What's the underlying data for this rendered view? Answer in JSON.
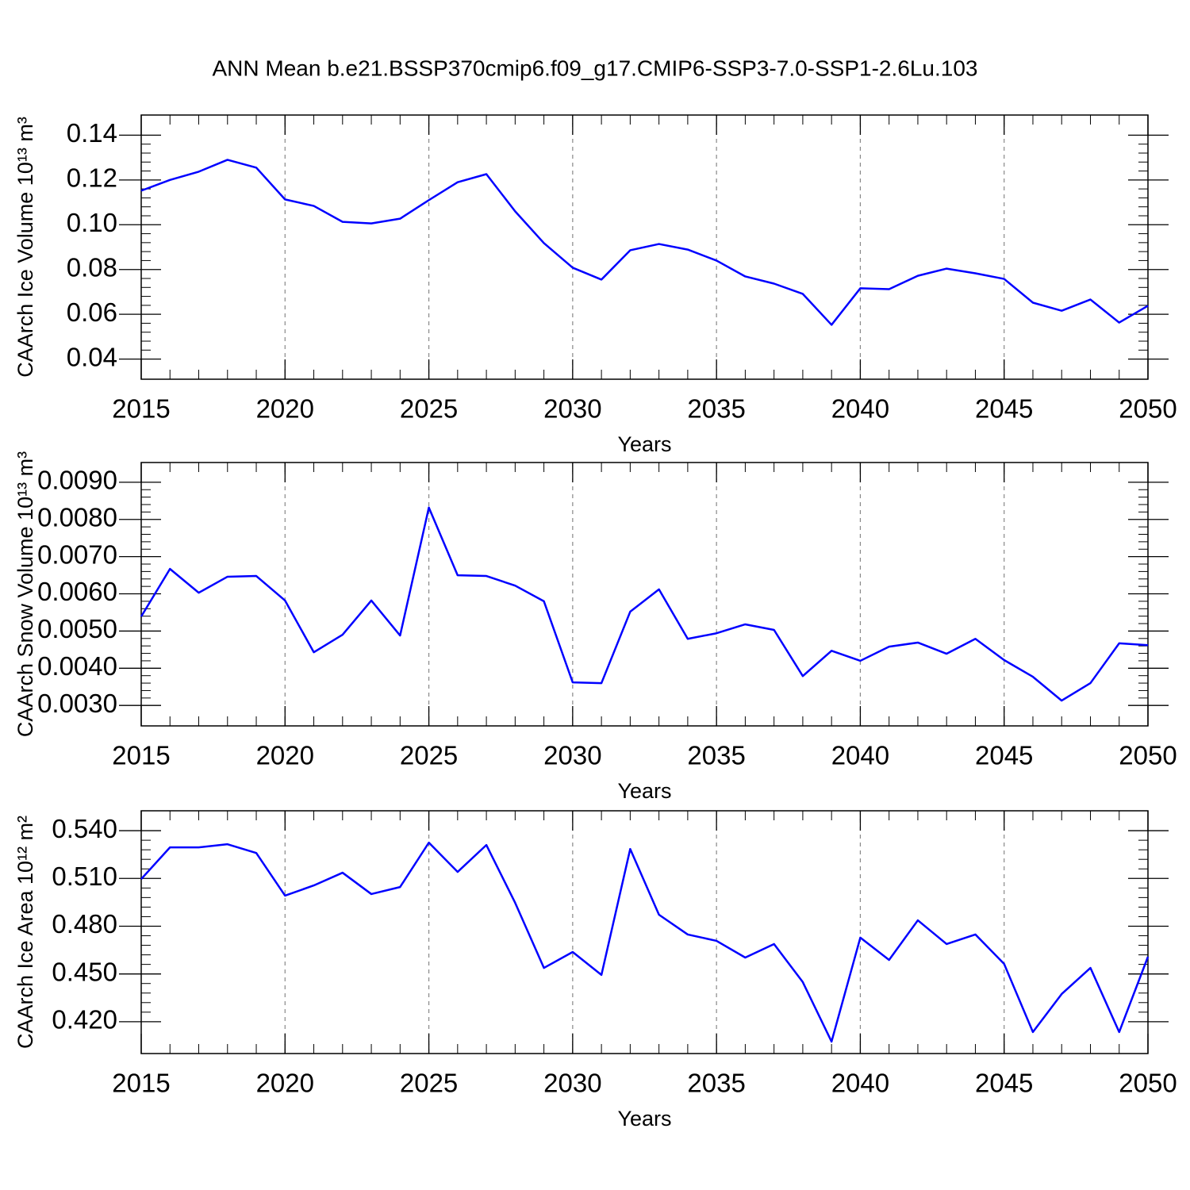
{
  "title": "ANN Mean b.e21.BSSP370cmip6.f09_g17.CMIP6-SSP3-7.0-SSP1-2.6Lu.103",
  "chart_data": [
    {
      "type": "line",
      "ylabel": "CAArch Ice Volume 10¹³ m³",
      "xlabel": "Years",
      "color": "#0000ff",
      "x": [
        2015,
        2016,
        2017,
        2018,
        2019,
        2020,
        2021,
        2022,
        2023,
        2024,
        2025,
        2026,
        2027,
        2028,
        2029,
        2030,
        2031,
        2032,
        2033,
        2034,
        2035,
        2036,
        2037,
        2038,
        2039,
        2040,
        2041,
        2042,
        2043,
        2044,
        2045,
        2046,
        2047,
        2048,
        2049,
        2050
      ],
      "values": [
        0.1152,
        0.12,
        0.1237,
        0.129,
        0.1255,
        0.1113,
        0.1084,
        0.1013,
        0.1006,
        0.1027,
        0.111,
        0.119,
        0.1226,
        0.106,
        0.0918,
        0.0808,
        0.0755,
        0.0886,
        0.0914,
        0.0889,
        0.084,
        0.0769,
        0.0737,
        0.0691,
        0.0553,
        0.0716,
        0.0712,
        0.0772,
        0.0804,
        0.0783,
        0.0758,
        0.0652,
        0.0616,
        0.0666,
        0.0563,
        0.0638
      ],
      "xlim": [
        2015,
        2050
      ],
      "xticks": [
        2015,
        2020,
        2025,
        2030,
        2035,
        2040,
        2045,
        2050
      ],
      "ylim": [
        0.031,
        0.149
      ],
      "yticks": [
        {
          "value": 0.04,
          "label": "0.04"
        },
        {
          "value": 0.06,
          "label": "0.06"
        },
        {
          "value": 0.08,
          "label": "0.08"
        },
        {
          "value": 0.1,
          "label": "0.10"
        },
        {
          "value": 0.12,
          "label": "0.12"
        },
        {
          "value": 0.14,
          "label": "0.14"
        }
      ],
      "grid": true
    },
    {
      "type": "line",
      "ylabel": "CAArch Snow Volume 10¹³ m³",
      "xlabel": "Years",
      "color": "#0000ff",
      "x": [
        2015,
        2016,
        2017,
        2018,
        2019,
        2020,
        2021,
        2022,
        2023,
        2024,
        2025,
        2026,
        2027,
        2028,
        2029,
        2030,
        2031,
        2032,
        2033,
        2034,
        2035,
        2036,
        2037,
        2038,
        2039,
        2040,
        2041,
        2042,
        2043,
        2044,
        2045,
        2046,
        2047,
        2048,
        2049,
        2050
      ],
      "values": [
        0.00539,
        0.00667,
        0.00603,
        0.00646,
        0.00648,
        0.00582,
        0.00443,
        0.0049,
        0.00582,
        0.00488,
        0.00832,
        0.0065,
        0.00648,
        0.00622,
        0.0058,
        0.00362,
        0.0036,
        0.00552,
        0.00612,
        0.00479,
        0.00494,
        0.00518,
        0.00503,
        0.00379,
        0.00447,
        0.0042,
        0.00458,
        0.00469,
        0.00439,
        0.00479,
        0.00422,
        0.00377,
        0.00313,
        0.0036,
        0.00467,
        0.00462
      ],
      "xlim": [
        2015,
        2050
      ],
      "xticks": [
        2015,
        2020,
        2025,
        2030,
        2035,
        2040,
        2045,
        2050
      ],
      "ylim": [
        0.00245,
        0.00953
      ],
      "yticks": [
        {
          "value": 0.003,
          "label": "0.0030"
        },
        {
          "value": 0.004,
          "label": "0.0040"
        },
        {
          "value": 0.005,
          "label": "0.0050"
        },
        {
          "value": 0.006,
          "label": "0.0060"
        },
        {
          "value": 0.007,
          "label": "0.0070"
        },
        {
          "value": 0.008,
          "label": "0.0080"
        },
        {
          "value": 0.009,
          "label": "0.0090"
        }
      ],
      "grid": true
    },
    {
      "type": "line",
      "ylabel": "CAArch Ice Area 10¹² m²",
      "xlabel": "Years",
      "color": "#0000ff",
      "x": [
        2015,
        2016,
        2017,
        2018,
        2019,
        2020,
        2021,
        2022,
        2023,
        2024,
        2025,
        2026,
        2027,
        2028,
        2029,
        2030,
        2031,
        2032,
        2033,
        2034,
        2035,
        2036,
        2037,
        2038,
        2039,
        2040,
        2041,
        2042,
        2043,
        2044,
        2045,
        2046,
        2047,
        2048,
        2049,
        2050
      ],
      "values": [
        0.5096,
        0.5295,
        0.5295,
        0.5315,
        0.526,
        0.4992,
        0.5056,
        0.5136,
        0.5002,
        0.5046,
        0.5325,
        0.5141,
        0.531,
        0.4947,
        0.4538,
        0.4638,
        0.4494,
        0.5285,
        0.4872,
        0.4748,
        0.4708,
        0.4603,
        0.4688,
        0.4449,
        0.4075,
        0.4728,
        0.4588,
        0.4837,
        0.4688,
        0.4748,
        0.4563,
        0.4135,
        0.4374,
        0.4538,
        0.4135,
        0.4608
      ],
      "xlim": [
        2015,
        2050
      ],
      "xticks": [
        2015,
        2020,
        2025,
        2030,
        2035,
        2040,
        2045,
        2050
      ],
      "ylim": [
        0.4,
        0.5525
      ],
      "yticks": [
        {
          "value": 0.42,
          "label": "0.420"
        },
        {
          "value": 0.45,
          "label": "0.450"
        },
        {
          "value": 0.48,
          "label": "0.480"
        },
        {
          "value": 0.51,
          "label": "0.510"
        },
        {
          "value": 0.54,
          "label": "0.540"
        }
      ],
      "grid": true
    }
  ]
}
